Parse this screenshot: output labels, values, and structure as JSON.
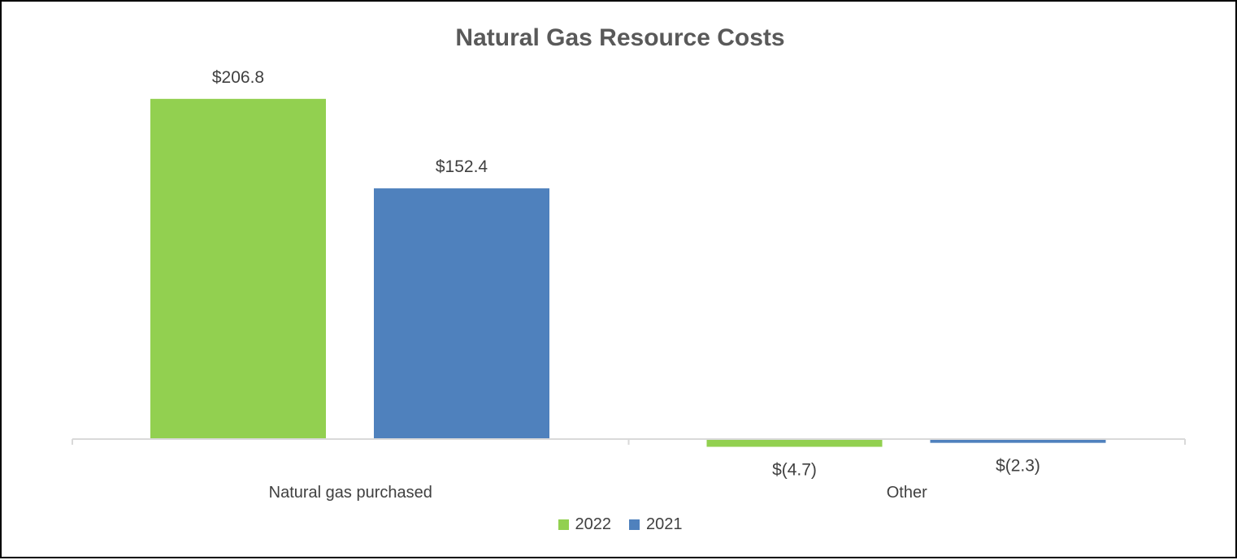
{
  "chart_data": {
    "type": "bar",
    "title": "Natural Gas Resource Costs",
    "categories": [
      "Natural gas purchased",
      "Other"
    ],
    "series": [
      {
        "name": "2022",
        "values": [
          206.8,
          -4.7
        ],
        "labels": [
          "$206.8",
          "$(4.7)"
        ],
        "color": "#92d050"
      },
      {
        "name": "2021",
        "values": [
          152.4,
          -2.3
        ],
        "labels": [
          "$152.4",
          "$(2.3)"
        ],
        "color": "#4f81bd"
      }
    ],
    "xlabel": "",
    "ylabel": "",
    "ylim": [
      -10,
      220
    ],
    "grid": false,
    "legend_position": "bottom"
  }
}
